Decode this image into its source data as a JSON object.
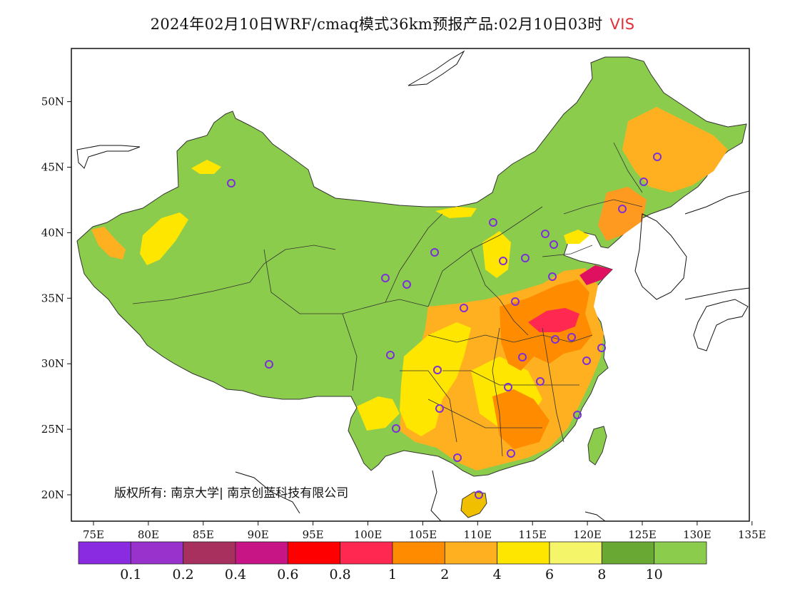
{
  "title": {
    "main": "2024年02月10日WRF/cmaq模式36km预报产品:02月10日03时",
    "variable": "VIS"
  },
  "map": {
    "lon_ticks": [
      "75E",
      "80E",
      "85E",
      "90E",
      "95E",
      "100E",
      "105E",
      "110E",
      "115E",
      "120E",
      "125E",
      "130E",
      "135E"
    ],
    "lat_ticks": [
      "20N",
      "25N",
      "30N",
      "35N",
      "40N",
      "45N",
      "50N"
    ],
    "copyright": "版权所有: 南京大学| 南京创蓝科技有限公司",
    "station_marker_color": "#7b2fd8"
  },
  "colorbar": {
    "labels": [
      "0.1",
      "0.2",
      "0.4",
      "0.6",
      "0.8",
      "1",
      "2",
      "4",
      "6",
      "8",
      "10"
    ],
    "colors": [
      "#8a2be2",
      "#9932cc",
      "#a8305e",
      "#c71585",
      "#ff0000",
      "#ff2850",
      "#ff8c00",
      "#ffb020",
      "#ffe600",
      "#f5f56a",
      "#6aa834",
      "#8ccc4c"
    ]
  }
}
